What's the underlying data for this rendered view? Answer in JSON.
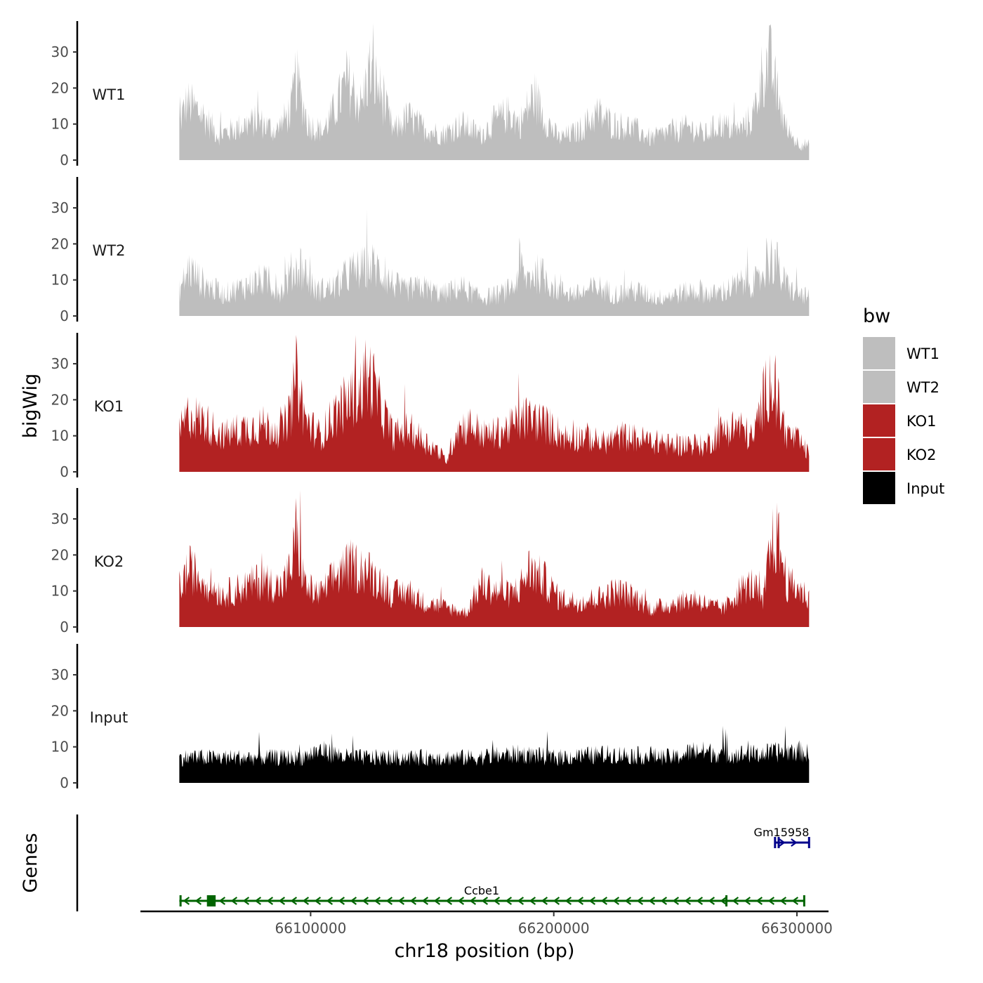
{
  "chart_data": {
    "type": "area",
    "title": "",
    "xlabel": "chr18 position (bp)",
    "ylabel": "bigWig",
    "genes_label": "Genes",
    "chromosome": "chr18",
    "xlim": [
      66030000,
      66313000
    ],
    "data_range": [
      66046000,
      66305000
    ],
    "ylim": [
      0,
      38
    ],
    "yticks": [
      0,
      10,
      20,
      30
    ],
    "xticks": [
      66100000,
      66200000,
      66300000
    ],
    "xtick_labels": [
      "66100000",
      "66200000",
      "66300000"
    ],
    "legend": {
      "title": "bw",
      "position": "right",
      "entries": [
        {
          "label": "WT1",
          "color": "#bebebe"
        },
        {
          "label": "WT2",
          "color": "#bebebe"
        },
        {
          "label": "KO1",
          "color": "#b22222"
        },
        {
          "label": "KO2",
          "color": "#b22222"
        },
        {
          "label": "Input",
          "color": "#000000"
        }
      ]
    },
    "series": [
      {
        "name": "WT1",
        "color": "#bebebe",
        "noise": 0.45,
        "x": [
          66046000,
          66049000,
          66055000,
          66062000,
          66070000,
          66078000,
          66086000,
          66092000,
          66094000,
          66099000,
          66105000,
          66110000,
          66115000,
          66121000,
          66124000,
          66128000,
          66134000,
          66140000,
          66146000,
          66154000,
          66162000,
          66170000,
          66176000,
          66182000,
          66186000,
          66192000,
          66196000,
          66202000,
          66210000,
          66218000,
          66224000,
          66232000,
          66240000,
          66248000,
          66256000,
          66262000,
          66268000,
          66276000,
          66282000,
          66286000,
          66289000,
          66292000,
          66296000,
          66300000,
          66305000
        ],
        "y": [
          10,
          16,
          13,
          7,
          9,
          11,
          8,
          14,
          23,
          10,
          8,
          14,
          22,
          15,
          25,
          20,
          8,
          12,
          9,
          7,
          10,
          7,
          11,
          13,
          10,
          18,
          12,
          6,
          8,
          13,
          10,
          9,
          6,
          8,
          9,
          7,
          10,
          8,
          12,
          25,
          27,
          18,
          8,
          5,
          4
        ]
      },
      {
        "name": "WT2",
        "color": "#bebebe",
        "noise": 0.5,
        "x": [
          66046000,
          66050000,
          66056000,
          66064000,
          66072000,
          66080000,
          66088000,
          66092000,
          66096000,
          66102000,
          66110000,
          66116000,
          66121000,
          66126000,
          66132000,
          66138000,
          66146000,
          66154000,
          66162000,
          66170000,
          66178000,
          66184000,
          66186000,
          66188000,
          66192000,
          66196000,
          66202000,
          66210000,
          66218000,
          66226000,
          66234000,
          66242000,
          66250000,
          66258000,
          66266000,
          66274000,
          66280000,
          66284000,
          66288000,
          66291000,
          66294000,
          66298000,
          66305000
        ],
        "y": [
          7,
          13,
          9,
          6,
          8,
          10,
          7,
          12,
          14,
          7,
          8,
          12,
          13,
          14,
          10,
          7,
          8,
          6,
          8,
          5,
          6,
          8,
          15,
          10,
          12,
          11,
          7,
          6,
          8,
          6,
          7,
          5,
          6,
          7,
          6,
          8,
          10,
          9,
          15,
          16,
          10,
          7,
          5
        ]
      },
      {
        "name": "KO1",
        "color": "#b22222",
        "noise": 0.45,
        "x": [
          66046000,
          66050000,
          66056000,
          66064000,
          66072000,
          66080000,
          66088000,
          66092000,
          66094000,
          66098000,
          66104000,
          66110000,
          66116000,
          66122000,
          66125000,
          66128000,
          66134000,
          66140000,
          66146000,
          66152000,
          66156000,
          66160000,
          66166000,
          66172000,
          66178000,
          66184000,
          66188000,
          66194000,
          66200000,
          66206000,
          66212000,
          66220000,
          66228000,
          66236000,
          66244000,
          66250000,
          66256000,
          66262000,
          66268000,
          66276000,
          66282000,
          66286000,
          66289000,
          66292000,
          66296000,
          66300000,
          66305000
        ],
        "y": [
          11,
          16,
          14,
          10,
          12,
          13,
          11,
          17,
          27,
          14,
          10,
          16,
          20,
          24,
          26,
          19,
          10,
          12,
          9,
          6,
          3,
          12,
          13,
          10,
          11,
          13,
          15,
          14,
          12,
          9,
          10,
          8,
          10,
          9,
          8,
          7,
          8,
          7,
          11,
          13,
          9,
          20,
          26,
          19,
          10,
          9,
          5
        ]
      },
      {
        "name": "KO2",
        "color": "#b22222",
        "noise": 0.45,
        "x": [
          66046000,
          66050000,
          66056000,
          66064000,
          66072000,
          66080000,
          66088000,
          66092000,
          66094000,
          66098000,
          66104000,
          66110000,
          66116000,
          66122000,
          66128000,
          66134000,
          66140000,
          66146000,
          66152000,
          66158000,
          66164000,
          66170000,
          66176000,
          66182000,
          66186000,
          66190000,
          66196000,
          66202000,
          66210000,
          66218000,
          66226000,
          66234000,
          66240000,
          66246000,
          66252000,
          66258000,
          66264000,
          66270000,
          66276000,
          66282000,
          66286000,
          66289000,
          66292000,
          66296000,
          66300000,
          66305000
        ],
        "y": [
          11,
          16,
          13,
          9,
          11,
          13,
          11,
          16,
          26,
          11,
          9,
          14,
          17,
          16,
          13,
          9,
          10,
          7,
          6,
          5,
          4,
          12,
          10,
          9,
          11,
          16,
          13,
          8,
          7,
          8,
          10,
          8,
          5,
          6,
          7,
          8,
          6,
          5,
          10,
          12,
          6,
          22,
          25,
          12,
          11,
          8
        ]
      },
      {
        "name": "Input",
        "color": "#000000",
        "noise": 0.35,
        "x": [
          66046000,
          66070000,
          66096000,
          66104000,
          66116000,
          66140000,
          66166000,
          66186000,
          66200000,
          66224000,
          66250000,
          66258000,
          66270000,
          66284000,
          66300000,
          66305000
        ],
        "y": [
          7,
          7,
          7,
          9,
          7,
          7,
          7,
          8,
          7,
          8,
          7,
          9,
          8,
          8,
          9,
          8
        ]
      }
    ],
    "genes": [
      {
        "name": "Ccbe1",
        "strand": "-",
        "start": 66046000,
        "end": 66303000,
        "color": "#006400",
        "exons": [
          66046500,
          66058500,
          66059500,
          66060500,
          66271000,
          66303000
        ]
      },
      {
        "name": "Gm15958",
        "strand": "+",
        "start": 66291000,
        "end": 66305000,
        "color": "#00008b",
        "exons": [
          66291000,
          66292500,
          66305000
        ]
      }
    ]
  }
}
